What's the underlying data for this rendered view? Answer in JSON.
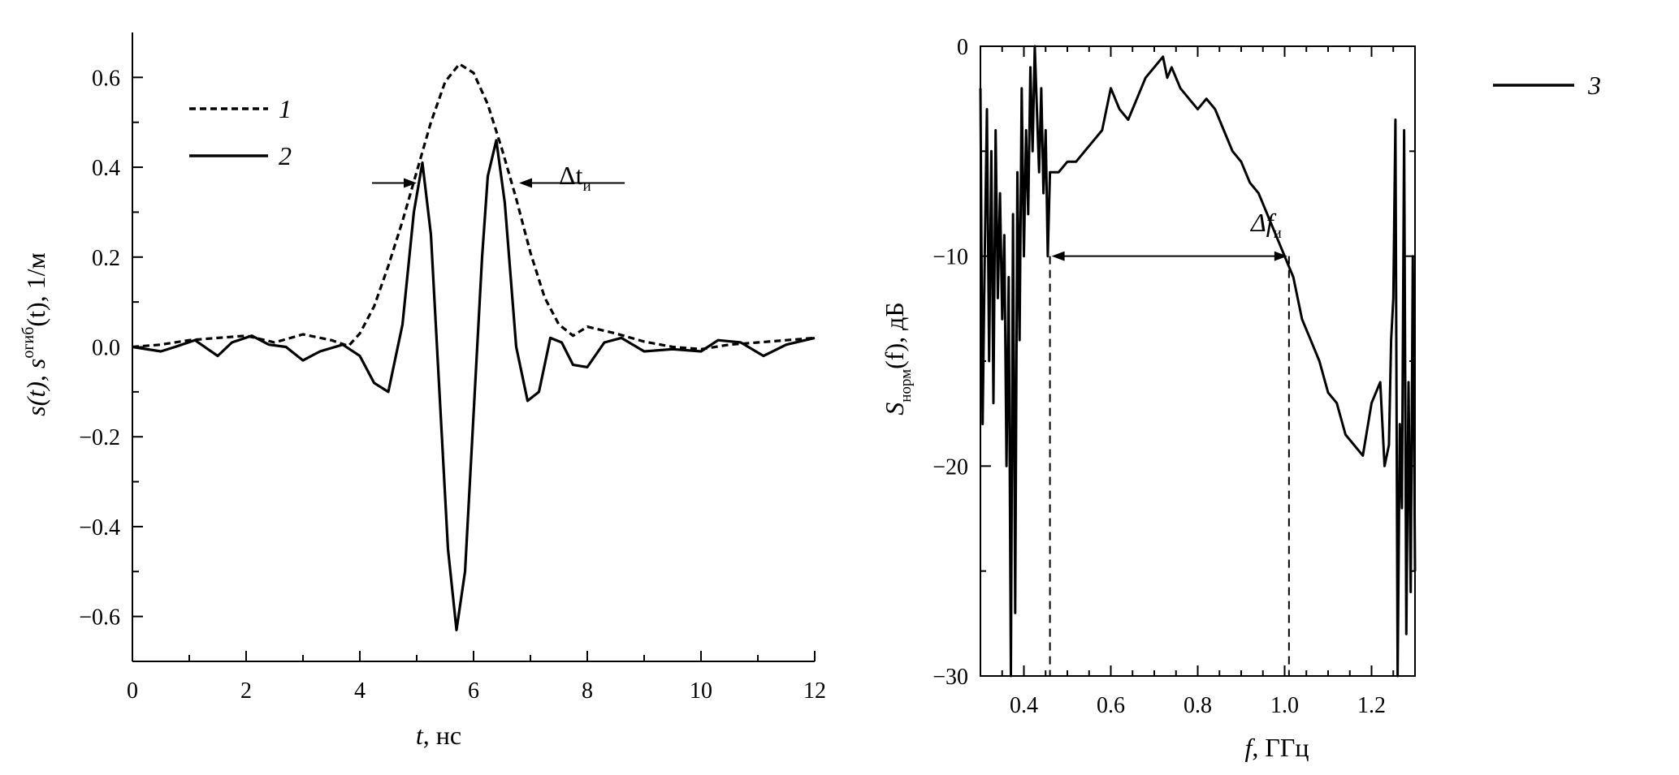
{
  "chart_data": [
    {
      "type": "line",
      "title": "",
      "xlabel": {
        "var": "t",
        "unit": ", нс"
      },
      "ylabel": {
        "p1": "s(t), s",
        "sup": "огиб",
        "p2": "(t), 1/м"
      },
      "xlim": [
        0,
        12
      ],
      "ylim": [
        -0.7,
        0.7
      ],
      "xticks": [
        "0",
        "2",
        "4",
        "6",
        "8",
        "10",
        "12"
      ],
      "yticks": [
        "0.6",
        "0.4",
        "0.2",
        "0.0",
        "−0.2",
        "−0.4",
        "−0.6"
      ],
      "grid": false,
      "legend_position": "top-left",
      "annotation": {
        "label": "Δt",
        "sub": "и",
        "t_left": 5.0,
        "t_right": 6.8,
        "level": 0.3
      },
      "series": [
        {
          "name": "1",
          "style": "dashed",
          "x": [
            0,
            0.5,
            1,
            1.5,
            2,
            2.5,
            3,
            3.5,
            3.8,
            4,
            4.25,
            4.5,
            4.75,
            5,
            5.25,
            5.5,
            5.75,
            6,
            6.25,
            6.5,
            6.75,
            7,
            7.25,
            7.5,
            7.75,
            8,
            8.5,
            9,
            9.5,
            10,
            10.5,
            11,
            11.5,
            12
          ],
          "y": [
            0,
            0.005,
            0.015,
            0.02,
            0.025,
            0.01,
            0.028,
            0.015,
            0.002,
            0.03,
            0.09,
            0.18,
            0.28,
            0.39,
            0.5,
            0.59,
            0.63,
            0.61,
            0.54,
            0.44,
            0.33,
            0.21,
            0.11,
            0.05,
            0.025,
            0.045,
            0.03,
            0.012,
            0.0,
            -0.005,
            0.005,
            0.01,
            0.015,
            0.02
          ]
        },
        {
          "name": "2",
          "style": "solid",
          "x": [
            0,
            0.5,
            0.75,
            1.1,
            1.5,
            1.75,
            2.1,
            2.4,
            2.7,
            3.0,
            3.3,
            3.7,
            4.0,
            4.25,
            4.5,
            4.75,
            4.95,
            5.1,
            5.25,
            5.4,
            5.55,
            5.7,
            5.85,
            6.0,
            6.15,
            6.25,
            6.4,
            6.55,
            6.75,
            6.95,
            7.15,
            7.35,
            7.55,
            7.75,
            8.0,
            8.3,
            8.6,
            9.0,
            9.5,
            10.0,
            10.3,
            10.7,
            11.1,
            11.5,
            12
          ],
          "y": [
            0,
            -0.01,
            0.0,
            0.015,
            -0.02,
            0.01,
            0.025,
            0.005,
            0.0,
            -0.03,
            -0.01,
            0.005,
            -0.02,
            -0.08,
            -0.1,
            0.05,
            0.3,
            0.41,
            0.25,
            -0.1,
            -0.45,
            -0.63,
            -0.5,
            -0.15,
            0.2,
            0.38,
            0.46,
            0.32,
            0.0,
            -0.12,
            -0.1,
            0.02,
            0.01,
            -0.04,
            -0.045,
            0.01,
            0.02,
            -0.01,
            -0.005,
            -0.01,
            0.015,
            0.01,
            -0.02,
            0.005,
            0.02
          ]
        }
      ]
    },
    {
      "type": "line",
      "title": "",
      "xlabel": {
        "var": "f",
        "unit": ", ГГц"
      },
      "ylabel": {
        "p1": "S",
        "sub": "норм",
        "p2": "(f), дБ"
      },
      "xlim": [
        0.3,
        1.3
      ],
      "ylim": [
        -30,
        0
      ],
      "xticks": [
        "0.4",
        "0.6",
        "0.8",
        "1.0",
        "1.2"
      ],
      "yticks": [
        "0",
        "−10",
        "−20",
        "−30"
      ],
      "grid": false,
      "legend_position": "top-right",
      "annotation": {
        "label": "Δf",
        "sub": "и",
        "f_left": 0.46,
        "f_right": 1.01,
        "level": -10
      },
      "series": [
        {
          "name": "3",
          "style": "solid",
          "x": [
            0.3,
            0.305,
            0.31,
            0.315,
            0.32,
            0.325,
            0.33,
            0.335,
            0.34,
            0.345,
            0.35,
            0.355,
            0.36,
            0.365,
            0.37,
            0.375,
            0.38,
            0.385,
            0.39,
            0.395,
            0.4,
            0.405,
            0.41,
            0.415,
            0.42,
            0.425,
            0.43,
            0.435,
            0.44,
            0.445,
            0.45,
            0.455,
            0.46,
            0.48,
            0.5,
            0.52,
            0.54,
            0.56,
            0.58,
            0.6,
            0.62,
            0.64,
            0.66,
            0.68,
            0.7,
            0.72,
            0.73,
            0.74,
            0.76,
            0.78,
            0.8,
            0.82,
            0.84,
            0.86,
            0.88,
            0.9,
            0.92,
            0.94,
            0.96,
            0.98,
            1.0,
            1.01,
            1.02,
            1.04,
            1.06,
            1.08,
            1.1,
            1.12,
            1.14,
            1.16,
            1.18,
            1.2,
            1.22,
            1.23,
            1.24,
            1.245,
            1.25,
            1.255,
            1.26,
            1.265,
            1.27,
            1.275,
            1.28,
            1.285,
            1.29,
            1.295,
            1.3
          ],
          "y": [
            -2,
            -18,
            -10,
            -3,
            -15,
            -5,
            -17,
            -4,
            -12,
            -7,
            -13,
            -9,
            -20,
            -11,
            -30,
            -8,
            -27,
            -6,
            -14,
            -2,
            -10,
            -4,
            -8,
            -1,
            -5,
            0,
            -3,
            -6,
            -2,
            -7,
            -4,
            -10,
            -6,
            -6,
            -5.5,
            -5.5,
            -5,
            -4.5,
            -4,
            -2,
            -3,
            -3.5,
            -2.5,
            -1.5,
            -1,
            -0.5,
            -1.5,
            -1,
            -2,
            -2.5,
            -3,
            -2.5,
            -3,
            -4,
            -5,
            -5.5,
            -6.5,
            -7,
            -8,
            -9,
            -10,
            -10.5,
            -11,
            -13,
            -14,
            -15,
            -16.5,
            -17,
            -18.5,
            -19,
            -19.5,
            -17,
            -16,
            -20,
            -19,
            -14,
            -12,
            -3.5,
            -30,
            -18,
            -22,
            -4,
            -28,
            -16,
            -26,
            -10,
            -25
          ]
        }
      ]
    }
  ]
}
